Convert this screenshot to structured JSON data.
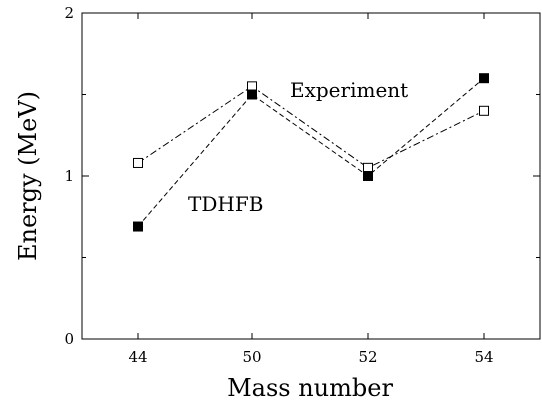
{
  "chart_data": {
    "type": "line",
    "categories": [
      "44",
      "50",
      "52",
      "54"
    ],
    "xlabel": "Mass number",
    "ylabel": "Energy  (MeV)",
    "ylim": [
      0,
      2
    ],
    "yticks": [
      "0",
      "1",
      "2"
    ],
    "grid": false,
    "series": [
      {
        "name": "Experiment",
        "values": [
          1.08,
          1.55,
          1.05,
          1.4
        ],
        "marker": "open-square",
        "line_style": "dash-dot",
        "color": "#000000"
      },
      {
        "name": "TDHFB",
        "values": [
          0.69,
          1.5,
          1.0,
          1.6
        ],
        "marker": "filled-square",
        "line_style": "dashed",
        "color": "#000000"
      }
    ]
  }
}
